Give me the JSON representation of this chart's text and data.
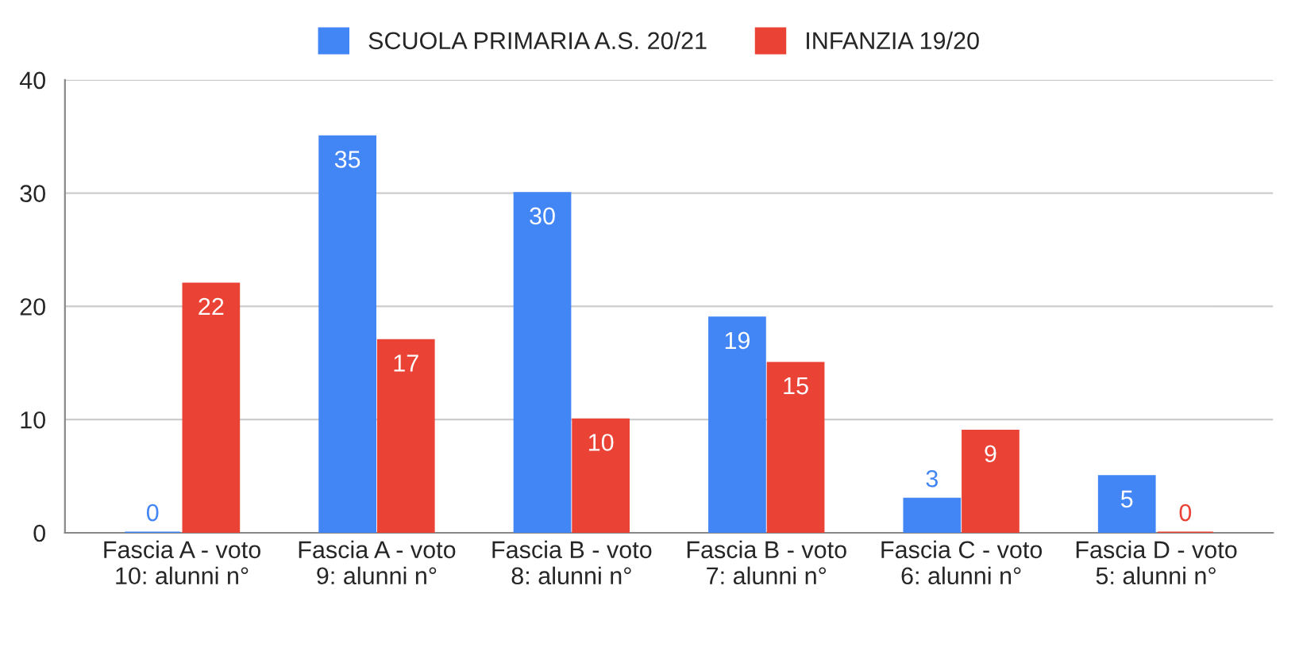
{
  "chart_data": {
    "type": "bar",
    "categories": [
      "Fascia A - voto 10: alunni n°",
      "Fascia A - voto 9: alunni n°",
      "Fascia B - voto 8: alunni n°",
      "Fascia B - voto 7: alunni n°",
      "Fascia C - voto 6: alunni n°",
      "Fascia D - voto 5: alunni n°"
    ],
    "series": [
      {
        "name": "SCUOLA PRIMARIA A.S. 20/21",
        "color": "#4285f4",
        "values": [
          0,
          35,
          30,
          19,
          3,
          5
        ]
      },
      {
        "name": "INFANZIA 19/20",
        "color": "#ea4335",
        "values": [
          22,
          17,
          10,
          15,
          9,
          0
        ]
      }
    ],
    "ylim": [
      0,
      40
    ],
    "yticks": [
      0,
      10,
      20,
      30,
      40
    ],
    "grid": "y",
    "legend": "top",
    "data_labels": true
  }
}
